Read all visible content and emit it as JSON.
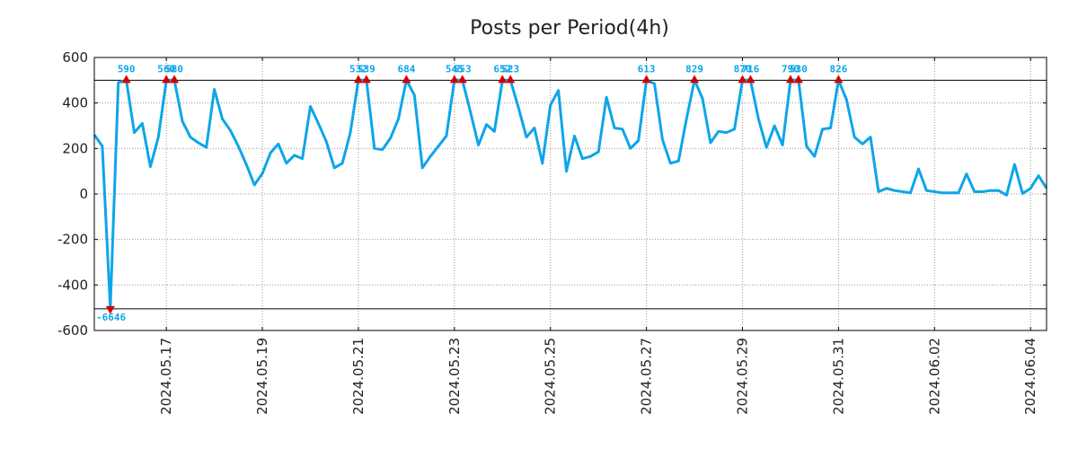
{
  "chart_data": {
    "type": "line",
    "title": "Posts per Period(4h)",
    "xlabel": "",
    "ylabel": "",
    "ylim": [
      -600,
      600
    ],
    "yticks": [
      600,
      400,
      200,
      0,
      -200,
      -400,
      -600
    ],
    "x_date_start": "2024.05.16",
    "x_period_hours": 4,
    "xtick_labels": [
      "2024.05.17",
      "2024.05.19",
      "2024.05.21",
      "2024.05.23",
      "2024.05.25",
      "2024.05.27",
      "2024.05.29",
      "2024.05.31",
      "2024.06.02",
      "2024.06.04"
    ],
    "xtick_index": [
      9,
      21,
      33,
      45,
      57,
      69,
      81,
      93,
      105,
      117
    ],
    "upper_threshold": 500,
    "lower_threshold": -505,
    "grid": true,
    "series": [
      {
        "name": "Posts",
        "color": "#0ea5e9",
        "values": [
          260,
          210,
          -505,
          490,
          500,
          270,
          310,
          120,
          250,
          500,
          500,
          320,
          250,
          225,
          205,
          460,
          330,
          280,
          210,
          130,
          40,
          90,
          180,
          220,
          135,
          170,
          155,
          385,
          310,
          230,
          115,
          135,
          270,
          500,
          500,
          200,
          195,
          245,
          330,
          500,
          435,
          115,
          165,
          210,
          255,
          500,
          500,
          360,
          215,
          305,
          275,
          500,
          500,
          380,
          250,
          290,
          135,
          390,
          455,
          100,
          255,
          155,
          165,
          185,
          425,
          290,
          285,
          200,
          235,
          500,
          485,
          240,
          135,
          145,
          330,
          500,
          420,
          225,
          275,
          270,
          285,
          500,
          500,
          330,
          205,
          300,
          215,
          500,
          500,
          210,
          165,
          285,
          290,
          500,
          415,
          250,
          220,
          250,
          10,
          25,
          15,
          10,
          5,
          110,
          15,
          10,
          5,
          5,
          5,
          88,
          10,
          10,
          15,
          15,
          -5,
          130,
          2,
          25,
          80,
          25
        ]
      }
    ],
    "markers": [
      {
        "index": 2,
        "label": "-6646",
        "direction": "down"
      },
      {
        "index": 4,
        "label": "590",
        "direction": "up"
      },
      {
        "index": 9,
        "label": "560",
        "direction": "up"
      },
      {
        "index": 10,
        "label": "580",
        "direction": "up"
      },
      {
        "index": 33,
        "label": "532",
        "direction": "up"
      },
      {
        "index": 34,
        "label": "539",
        "direction": "up"
      },
      {
        "index": 39,
        "label": "684",
        "direction": "up"
      },
      {
        "index": 45,
        "label": "545",
        "direction": "up"
      },
      {
        "index": 46,
        "label": "553",
        "direction": "up"
      },
      {
        "index": 51,
        "label": "652",
        "direction": "up"
      },
      {
        "index": 52,
        "label": "523",
        "direction": "up"
      },
      {
        "index": 69,
        "label": "613",
        "direction": "up"
      },
      {
        "index": 75,
        "label": "829",
        "direction": "up"
      },
      {
        "index": 81,
        "label": "870",
        "direction": "up"
      },
      {
        "index": 82,
        "label": "716",
        "direction": "up"
      },
      {
        "index": 87,
        "label": "790",
        "direction": "up"
      },
      {
        "index": 88,
        "label": "530",
        "direction": "up"
      },
      {
        "index": 93,
        "label": "826",
        "direction": "up"
      }
    ],
    "marker_color": "#d40000",
    "annotation_color": "#0ea5e9"
  }
}
